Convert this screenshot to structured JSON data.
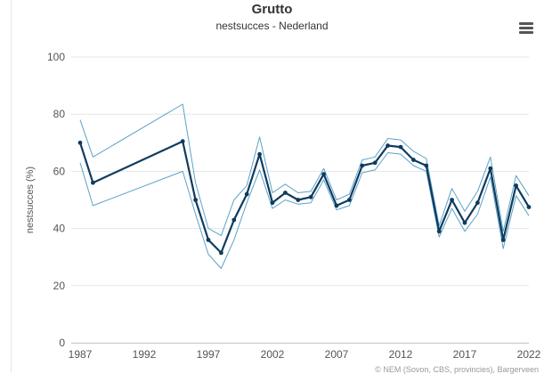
{
  "chart_data": {
    "type": "line",
    "title": "Grutto",
    "subtitle": "nestsucces - Nederland",
    "ylabel": "nestsucces (%)",
    "xlabel": "",
    "xlim": [
      1987,
      2022
    ],
    "ylim": [
      0,
      100
    ],
    "x_ticks": [
      1987,
      1992,
      1997,
      2002,
      2007,
      2012,
      2017,
      2022
    ],
    "y_ticks": [
      0,
      20,
      40,
      60,
      80,
      100
    ],
    "grid": true,
    "credits": "© NEM (Sovon, CBS, provincies), Bargerveen",
    "colors": {
      "main": "#0f3b5f",
      "band": "#5aa3c6",
      "grid": "#e6e6e6"
    },
    "x": [
      1987,
      1988,
      1995,
      1996,
      1997,
      1998,
      1999,
      2000,
      2001,
      2002,
      2003,
      2004,
      2005,
      2006,
      2007,
      2008,
      2009,
      2010,
      2011,
      2012,
      2013,
      2014,
      2015,
      2016,
      2017,
      2018,
      2019,
      2020,
      2021,
      2022
    ],
    "series": [
      {
        "values": [
          70,
          56,
          70.5,
          50,
          36,
          31.5,
          43,
          52,
          66,
          49,
          52.5,
          50,
          51,
          59,
          48,
          50,
          62,
          63,
          69,
          68.5,
          64,
          62,
          39,
          50,
          42,
          49,
          61,
          36,
          55,
          47.5
        ]
      },
      {
        "values": [
          78,
          65,
          83.5,
          56,
          40,
          37.5,
          50,
          55,
          72,
          52.5,
          55.5,
          52.5,
          53,
          61,
          50,
          52,
          64,
          65,
          71.5,
          71,
          67,
          64.5,
          41,
          54,
          46,
          53,
          65,
          39,
          58.5,
          51.5
        ]
      },
      {
        "values": [
          63,
          48,
          60,
          45,
          31,
          26,
          36,
          49,
          60.5,
          47,
          50,
          48.5,
          49,
          57,
          46.5,
          48,
          59.5,
          60.5,
          66.5,
          66,
          62,
          60,
          37,
          47,
          39,
          45,
          58,
          33,
          51.5,
          44.5
        ]
      }
    ]
  }
}
